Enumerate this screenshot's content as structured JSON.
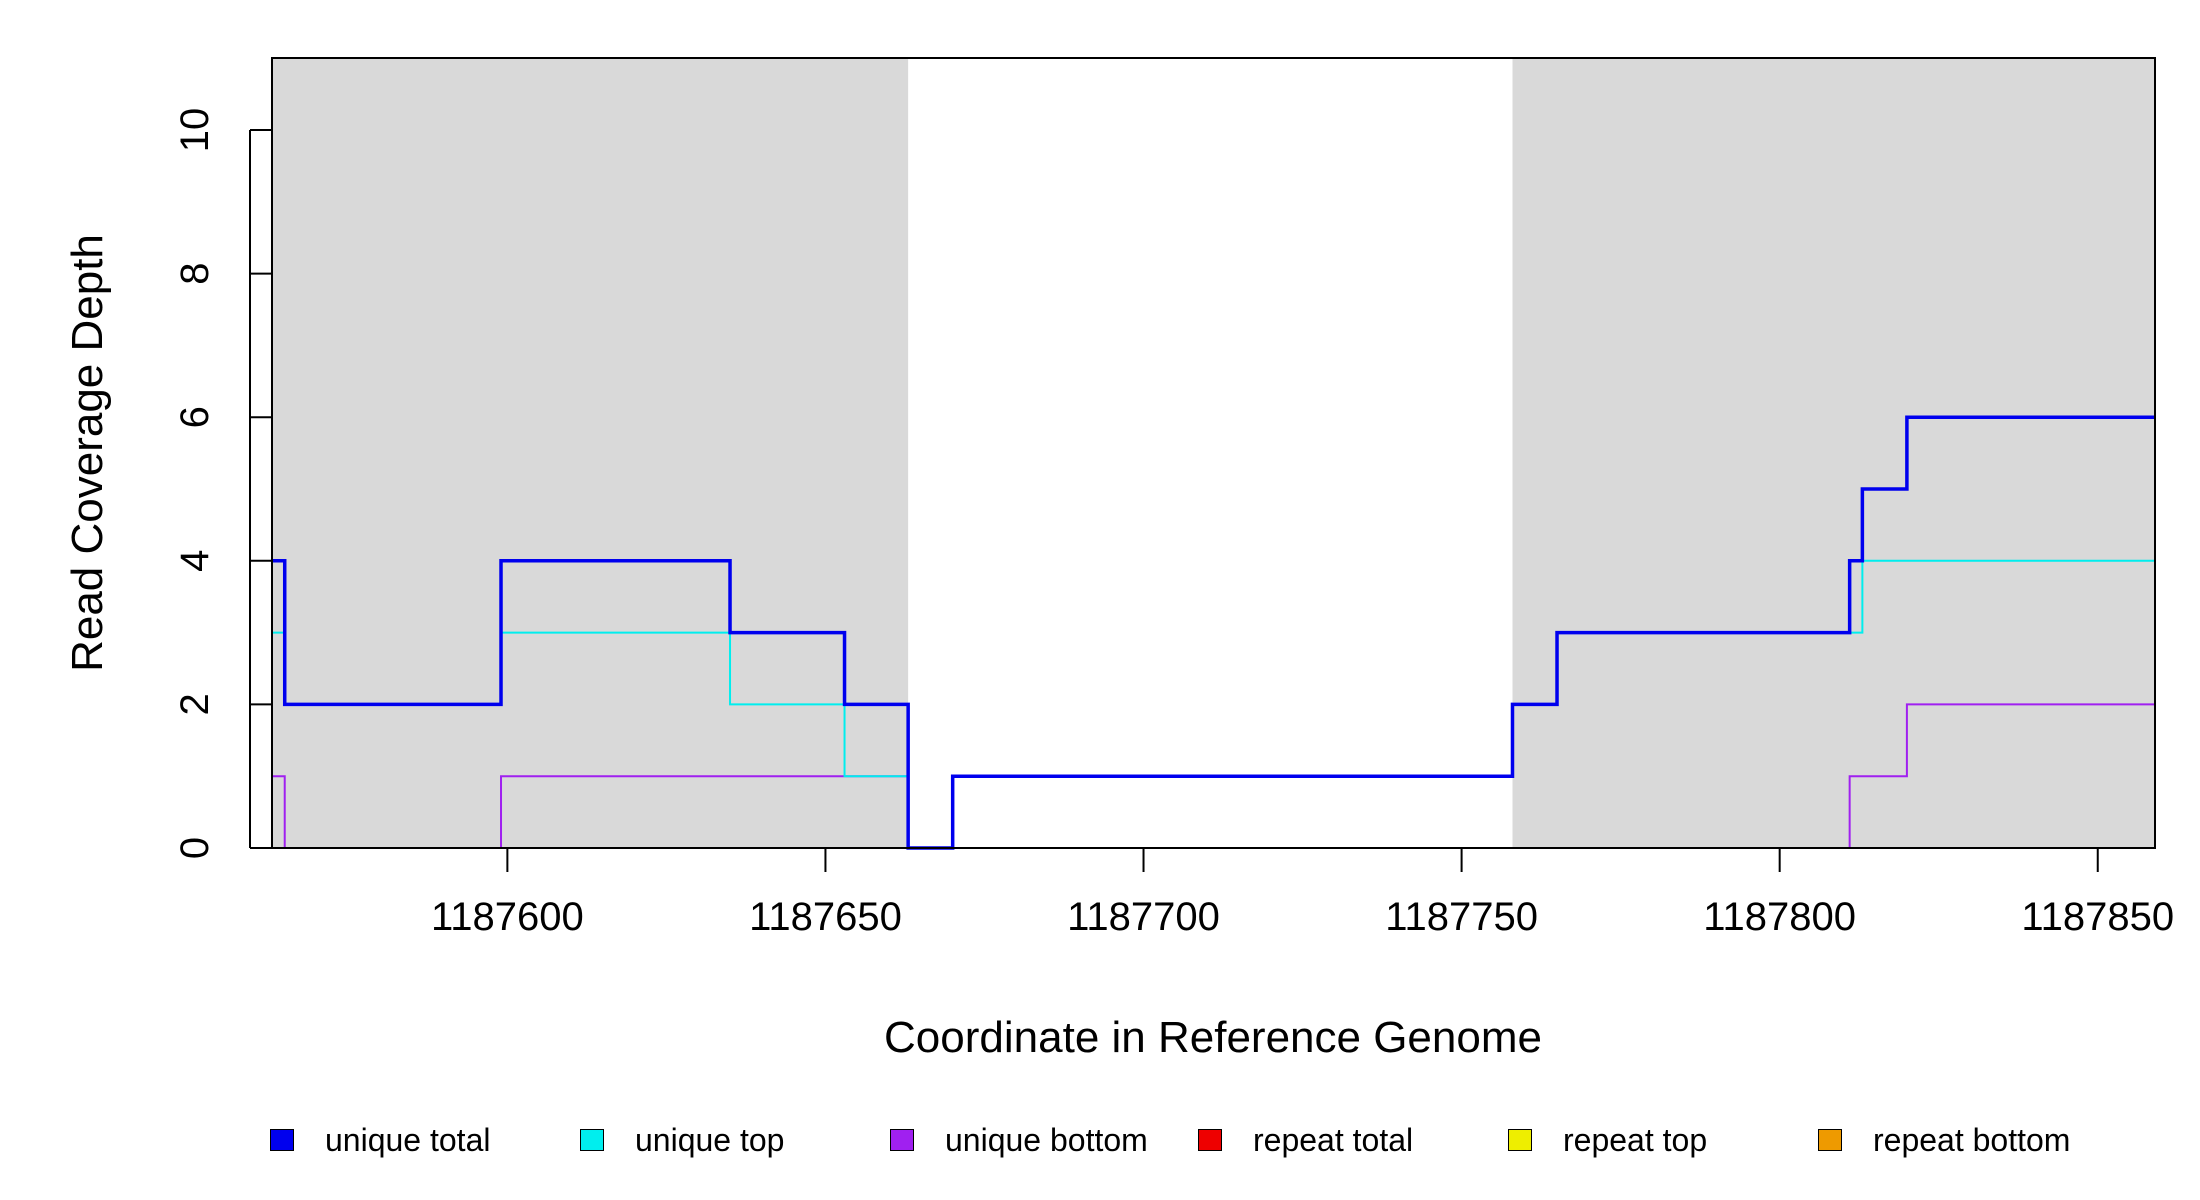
{
  "chart_data": {
    "type": "line",
    "step": true,
    "xlabel": "Coordinate in Reference Genome",
    "ylabel": "Read Coverage Depth",
    "xlim": [
      1187563,
      1187859
    ],
    "ylim": [
      0,
      11
    ],
    "x_ticks": [
      1187600,
      1187650,
      1187700,
      1187750,
      1187800,
      1187850
    ],
    "x_tick_labels": [
      "1187600",
      "1187650",
      "1187700",
      "1187750",
      "1187800",
      "1187850"
    ],
    "y_ticks": [
      0,
      2,
      4,
      6,
      8,
      10
    ],
    "y_tick_labels": [
      "0",
      "2",
      "4",
      "6",
      "8",
      "10"
    ],
    "grid": false,
    "legend_position": "bottom",
    "shaded_regions": [
      {
        "x": [
          1187563,
          1187663
        ],
        "color": "#d9d9d9"
      },
      {
        "x": [
          1187758,
          1187859
        ],
        "color": "#d9d9d9"
      }
    ],
    "series": [
      {
        "name": "unique total",
        "color": "#0000ee",
        "width": 3.5,
        "points": [
          [
            1187563,
            4
          ],
          [
            1187565,
            2
          ],
          [
            1187599,
            4
          ],
          [
            1187635,
            3
          ],
          [
            1187653,
            2
          ],
          [
            1187663,
            0
          ],
          [
            1187670,
            1
          ],
          [
            1187758,
            2
          ],
          [
            1187765,
            3
          ],
          [
            1187811,
            4
          ],
          [
            1187813,
            5
          ],
          [
            1187820,
            6
          ],
          [
            1187859,
            6
          ]
        ]
      },
      {
        "name": "unique top",
        "color": "#00eeee",
        "width": 2,
        "points": [
          [
            1187563,
            3
          ],
          [
            1187565,
            2
          ],
          [
            1187599,
            3
          ],
          [
            1187635,
            2
          ],
          [
            1187653,
            1
          ],
          [
            1187663,
            0
          ],
          [
            1187670,
            1
          ],
          [
            1187758,
            2
          ],
          [
            1187765,
            3
          ],
          [
            1187813,
            4
          ],
          [
            1187859,
            4
          ]
        ]
      },
      {
        "name": "unique bottom",
        "color": "#a020f0",
        "width": 2,
        "points": [
          [
            1187563,
            1
          ],
          [
            1187565,
            0
          ],
          [
            1187599,
            1
          ],
          [
            1187663,
            0
          ],
          [
            1187811,
            1
          ],
          [
            1187820,
            2
          ],
          [
            1187859,
            2
          ]
        ]
      },
      {
        "name": "repeat total",
        "color": "#ee0000",
        "width": 2,
        "points": [
          [
            1187563,
            0
          ],
          [
            1187859,
            0
          ]
        ]
      },
      {
        "name": "repeat top",
        "color": "#eeee00",
        "width": 2,
        "points": [
          [
            1187563,
            0
          ],
          [
            1187859,
            0
          ]
        ]
      },
      {
        "name": "repeat bottom",
        "color": "#ee9a00",
        "width": 2,
        "points": [
          [
            1187563,
            0
          ],
          [
            1187859,
            0
          ]
        ]
      }
    ],
    "overlap_color": "#1e90ff",
    "legend": [
      {
        "label": "unique total",
        "color": "#0000ee"
      },
      {
        "label": "unique top",
        "color": "#00eeee"
      },
      {
        "label": "unique bottom",
        "color": "#a020f0"
      },
      {
        "label": "repeat total",
        "color": "#ee0000"
      },
      {
        "label": "repeat top",
        "color": "#eeee00"
      },
      {
        "label": "repeat bottom",
        "color": "#ee9a00"
      }
    ]
  }
}
